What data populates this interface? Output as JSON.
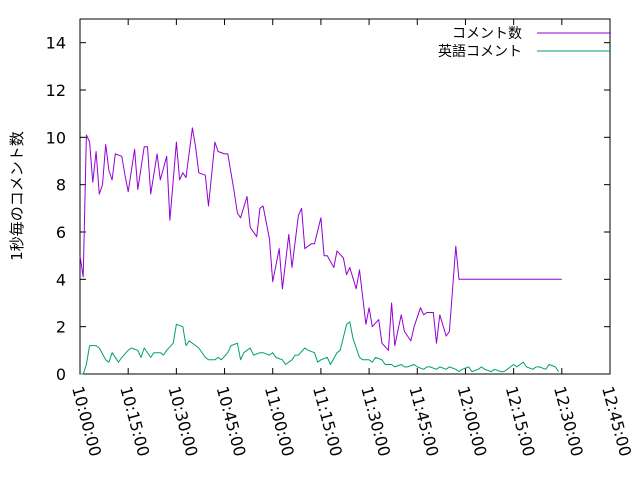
{
  "chart_data": {
    "type": "line",
    "title": "",
    "xlabel": "",
    "ylabel": "1秒毎のコメント数",
    "x_ticks": [
      "10:00:00",
      "10:15:00",
      "10:30:00",
      "10:45:00",
      "11:00:00",
      "11:15:00",
      "11:30:00",
      "11:45:00",
      "12:00:00",
      "12:15:00",
      "12:30:00",
      "12:45:00"
    ],
    "y_ticks": [
      0,
      2,
      4,
      6,
      8,
      10,
      12,
      14
    ],
    "xlim": [
      "10:00:00",
      "12:45:00"
    ],
    "ylim": [
      0,
      15
    ],
    "grid": false,
    "legend_position": "top-right",
    "series": [
      {
        "name": "コメント数",
        "color": "#9400d3",
        "x": [
          "10:00:00",
          "10:01:00",
          "10:02:00",
          "10:03:00",
          "10:04:00",
          "10:05:00",
          "10:06:00",
          "10:07:00",
          "10:08:00",
          "10:09:00",
          "10:10:00",
          "10:11:00",
          "10:13:00",
          "10:14:00",
          "10:15:00",
          "10:17:00",
          "10:18:00",
          "10:20:00",
          "10:21:00",
          "10:22:00",
          "10:24:00",
          "10:25:00",
          "10:27:00",
          "10:28:00",
          "10:30:00",
          "10:31:00",
          "10:32:00",
          "10:33:00",
          "10:35:00",
          "10:36:00",
          "10:37:00",
          "10:39:00",
          "10:40:00",
          "10:42:00",
          "10:43:00",
          "10:45:00",
          "10:46:00",
          "10:48:00",
          "10:49:00",
          "10:50:00",
          "10:52:00",
          "10:53:00",
          "10:55:00",
          "10:56:00",
          "10:57:00",
          "10:59:00",
          "11:00:00",
          "11:02:00",
          "11:03:00",
          "11:05:00",
          "11:06:00",
          "11:08:00",
          "11:09:00",
          "11:10:00",
          "11:12:00",
          "11:13:00",
          "11:15:00",
          "11:16:00",
          "11:17:00",
          "11:19:00",
          "11:20:00",
          "11:22:00",
          "11:23:00",
          "11:24:00",
          "11:26:00",
          "11:27:00",
          "11:29:00",
          "11:30:00",
          "11:31:00",
          "11:33:00",
          "11:34:00",
          "11:36:00",
          "11:37:00",
          "11:38:00",
          "11:40:00",
          "11:41:00",
          "11:43:00",
          "11:44:00",
          "11:46:00",
          "11:47:00",
          "11:48:00",
          "11:50:00",
          "11:51:00",
          "11:52:00",
          "11:54:00",
          "11:55:00",
          "11:57:00",
          "11:58:00",
          "12:00:00",
          "12:01:00",
          "12:02:00",
          "12:04:00",
          "12:05:00",
          "12:07:00",
          "12:08:00",
          "12:09:00",
          "12:11:00",
          "12:12:00",
          "12:14:00",
          "12:15:00",
          "12:16:00",
          "12:18:00",
          "12:19:00",
          "12:21:00",
          "12:22:00",
          "12:23:00",
          "12:25:00",
          "12:26:00",
          "12:28:00",
          "12:29:00",
          "12:30:00"
        ],
        "y": [
          5.0,
          4.1,
          10.1,
          9.8,
          8.1,
          9.4,
          7.6,
          8.0,
          9.7,
          8.6,
          8.2,
          9.3,
          9.2,
          8.4,
          7.7,
          9.5,
          7.8,
          9.6,
          9.6,
          7.6,
          9.3,
          8.2,
          9.2,
          6.5,
          9.8,
          8.2,
          8.5,
          8.3,
          10.4,
          9.6,
          8.5,
          8.4,
          7.1,
          9.8,
          9.4,
          9.3,
          9.3,
          7.7,
          6.8,
          6.6,
          7.5,
          6.2,
          5.8,
          7.0,
          7.1,
          5.7,
          3.9,
          5.3,
          3.6,
          5.9,
          4.5,
          6.7,
          7.0,
          5.3,
          5.5,
          5.5,
          6.6,
          5.0,
          5.0,
          4.5,
          5.2,
          4.9,
          4.2,
          4.5,
          3.6,
          4.4,
          2.1,
          2.8,
          2.0,
          2.3,
          1.3,
          1.0,
          3.0,
          1.2,
          2.5,
          1.8,
          1.4,
          2.0,
          2.8,
          2.5,
          2.6,
          2.6,
          1.3,
          2.5,
          1.6,
          1.8,
          5.4,
          4.0,
          4.0,
          4.0,
          4.0,
          4.0,
          4.0,
          4.0,
          4.0,
          4.0,
          4.0,
          4.0,
          4.0,
          4.0,
          4.0,
          4.0,
          4.0,
          4.0,
          4.0,
          4.0,
          4.0,
          4.0,
          4.0,
          4.0,
          4.0
        ]
      },
      {
        "name": "英語コメント",
        "color": "#009e73",
        "x": [
          "10:00:00",
          "10:01:00",
          "10:02:00",
          "10:03:00",
          "10:05:00",
          "10:06:00",
          "10:08:00",
          "10:09:00",
          "10:10:00",
          "10:12:00",
          "10:13:00",
          "10:15:00",
          "10:16:00",
          "10:18:00",
          "10:19:00",
          "10:20:00",
          "10:22:00",
          "10:23:00",
          "10:25:00",
          "10:26:00",
          "10:27:00",
          "10:29:00",
          "10:30:00",
          "10:32:00",
          "10:33:00",
          "10:34:00",
          "10:36:00",
          "10:37:00",
          "10:39:00",
          "10:40:00",
          "10:42:00",
          "10:43:00",
          "10:44:00",
          "10:46:00",
          "10:47:00",
          "10:49:00",
          "10:50:00",
          "10:51:00",
          "10:53:00",
          "10:54:00",
          "10:56:00",
          "10:57:00",
          "10:59:00",
          "11:00:00",
          "11:01:00",
          "11:03:00",
          "11:04:00",
          "11:06:00",
          "11:07:00",
          "11:08:00",
          "11:10:00",
          "11:11:00",
          "11:13:00",
          "11:14:00",
          "11:15:00",
          "11:17:00",
          "11:18:00",
          "11:20:00",
          "11:21:00",
          "11:23:00",
          "11:24:00",
          "11:25:00",
          "11:27:00",
          "11:28:00",
          "11:30:00",
          "11:31:00",
          "11:32:00",
          "11:34:00",
          "11:35:00",
          "11:37:00",
          "11:38:00",
          "11:40:00",
          "11:41:00",
          "11:42:00",
          "11:44:00",
          "11:45:00",
          "11:47:00",
          "11:48:00",
          "11:49:00",
          "11:51:00",
          "11:52:00",
          "11:54:00",
          "11:55:00",
          "11:57:00",
          "11:58:00",
          "11:59:00",
          "12:01:00",
          "12:02:00",
          "12:04:00",
          "12:05:00",
          "12:06:00",
          "12:08:00",
          "12:09:00",
          "12:11:00",
          "12:12:00",
          "12:13:00",
          "12:15:00",
          "12:16:00",
          "12:18:00",
          "12:19:00",
          "12:21:00",
          "12:22:00",
          "12:23:00",
          "12:25:00",
          "12:26:00",
          "12:28:00",
          "12:29:00"
        ],
        "y": [
          0.0,
          0.0,
          0.4,
          1.2,
          1.2,
          1.1,
          0.6,
          0.5,
          0.9,
          0.5,
          0.7,
          1.0,
          1.1,
          1.0,
          0.7,
          1.1,
          0.7,
          0.9,
          0.9,
          0.8,
          1.0,
          1.3,
          2.1,
          2.0,
          1.2,
          1.4,
          1.2,
          1.1,
          0.7,
          0.6,
          0.6,
          0.7,
          0.6,
          0.9,
          1.2,
          1.3,
          0.6,
          0.9,
          1.1,
          0.8,
          0.9,
          0.9,
          0.8,
          0.9,
          0.7,
          0.6,
          0.4,
          0.6,
          0.8,
          0.8,
          1.1,
          1.0,
          0.9,
          0.5,
          0.6,
          0.7,
          0.4,
          0.9,
          1.0,
          2.1,
          2.2,
          1.5,
          0.7,
          0.6,
          0.6,
          0.5,
          0.7,
          0.6,
          0.4,
          0.4,
          0.3,
          0.4,
          0.3,
          0.3,
          0.4,
          0.3,
          0.2,
          0.3,
          0.3,
          0.2,
          0.3,
          0.2,
          0.3,
          0.2,
          0.1,
          0.2,
          0.3,
          0.1,
          0.2,
          0.3,
          0.2,
          0.1,
          0.2,
          0.1,
          0.1,
          0.2,
          0.4,
          0.3,
          0.5,
          0.3,
          0.2,
          0.3,
          0.3,
          0.2,
          0.4,
          0.3,
          0.1
        ]
      }
    ]
  }
}
